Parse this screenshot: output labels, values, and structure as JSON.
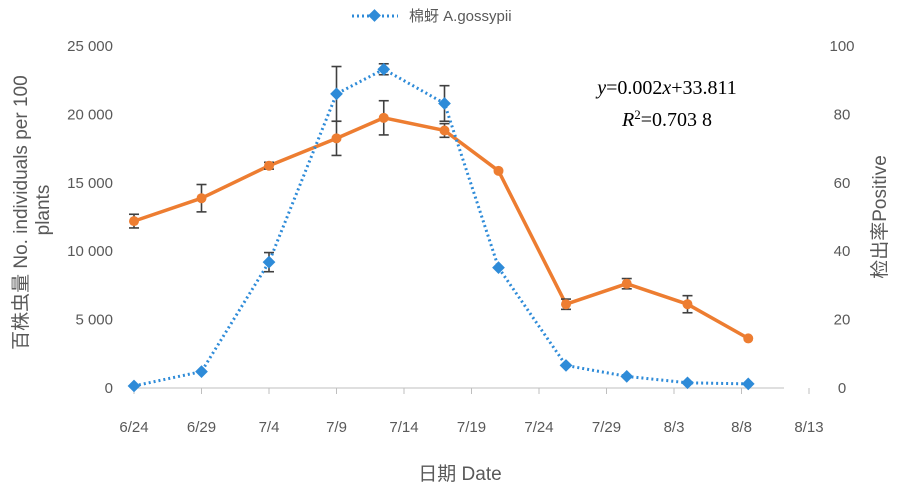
{
  "chart_data": {
    "type": "line",
    "x": [
      "6/24",
      "6/29",
      "7/4",
      "7/9",
      "7/14",
      "7/19",
      "7/24",
      "7/29",
      "8/3",
      "8/8",
      "8/13"
    ],
    "xlabel": "日期 Date",
    "ylabel_left": "百株虫量 No. individuals per 100 plants",
    "ylabel_right": "检出率Positive",
    "ylim_left": [
      0,
      25000
    ],
    "ylim_right": [
      0,
      100
    ],
    "yticks_left": [
      "0",
      "5 000",
      "10 000",
      "15 000",
      "20 000",
      "25 000"
    ],
    "yticks_right": [
      "0",
      "20",
      "40",
      "60",
      "80",
      "100"
    ],
    "legend_position": "top-center",
    "grid": false,
    "series": [
      {
        "name": "棉蚜 A.gossypii",
        "axis": "left",
        "color": "#2e8bd8",
        "style": "dotted-diamond",
        "x_positions": [
          0,
          1,
          2,
          3,
          3.7,
          4.6,
          5.4,
          6.4,
          7.3,
          8.2,
          9.1
        ],
        "values": [
          150,
          1200,
          9200,
          21500,
          23300,
          20800,
          8800,
          1650,
          850,
          380,
          300
        ],
        "errors": [
          0,
          0,
          700,
          2000,
          400,
          1300,
          0,
          0,
          0,
          0,
          0
        ]
      },
      {
        "axis": "right",
        "color": "#ed7d31",
        "style": "solid-circle",
        "x_positions": [
          0,
          1,
          2,
          3,
          3.7,
          4.6,
          5.4,
          6.4,
          7.3,
          8.2,
          9.1
        ],
        "values": [
          48.8,
          55.5,
          65,
          73,
          79,
          75.3,
          63.5,
          24.5,
          30.5,
          24.5,
          14.5
        ],
        "errors": [
          2,
          4,
          1,
          5,
          5,
          2,
          0,
          1.5,
          1.5,
          2.5,
          0
        ]
      }
    ],
    "annotations": [
      "y=0.002x+33.811",
      "R²=0.703 8"
    ]
  }
}
